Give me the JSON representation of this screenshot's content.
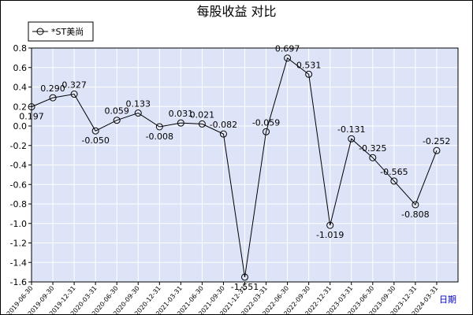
{
  "chart_data": {
    "type": "line",
    "title": "每股收益 对比",
    "xlabel": "日期",
    "ylabel": "",
    "ylim": [
      -1.6,
      0.8
    ],
    "yticks": [
      "0.8",
      "0.6",
      "0.4",
      "0.2",
      "0.0",
      "-0.2",
      "-0.4",
      "-0.6",
      "-0.8",
      "-1.0",
      "-1.2",
      "-1.4",
      "-1.6"
    ],
    "categories": [
      "2019-06-30",
      "2019-09-30",
      "2019-12-31",
      "2020-03-31",
      "2020-06-30",
      "2020-09-30",
      "2020-12-31",
      "2021-03-31",
      "2021-06-30",
      "2021-09-30",
      "2021-12-31",
      "2022-03-31",
      "2022-06-30",
      "2022-09-30",
      "2022-12-31",
      "2023-03-31",
      "2023-06-30",
      "2023-09-30",
      "2023-12-31",
      "2024-03-31"
    ],
    "series": [
      {
        "name": "*ST美尚",
        "values": [
          0.197,
          0.29,
          0.327,
          -0.05,
          0.059,
          0.133,
          -0.008,
          0.031,
          0.021,
          -0.082,
          -1.551,
          -0.059,
          0.697,
          0.531,
          -1.019,
          -0.131,
          -0.325,
          -0.565,
          -0.808,
          -0.252
        ],
        "labels": [
          "0.197",
          "0.290",
          "0.327",
          "-0.050",
          "0.059",
          "0.133",
          "-0.008",
          "0.031",
          "0.021",
          "-0.082",
          "-1.551",
          "-0.059",
          "0.697",
          "0.531",
          "-1.019",
          "-0.131",
          "-0.325",
          "-0.565",
          "-0.808",
          "-0.252"
        ]
      }
    ],
    "grid": true,
    "legend": "top-left",
    "colors": {
      "plot_bg": "#dde4f8",
      "grid": "#ffffff",
      "line": "#000000"
    }
  }
}
